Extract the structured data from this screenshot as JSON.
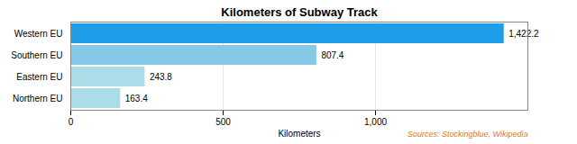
{
  "chart_data": {
    "type": "bar",
    "orientation": "horizontal",
    "title": "Kilometers of Subway Track",
    "xlabel": "Kilometers",
    "categories": [
      "Northern EU",
      "Eastern EU",
      "Southern EU",
      "Western EU"
    ],
    "values": [
      163.4,
      243.8,
      807.4,
      1422.2
    ],
    "value_labels": [
      "163.4",
      "243.8",
      "807.4",
      "1,422.2"
    ],
    "data_labels": true,
    "colors": [
      "#aadde8",
      "#aadde8",
      "#85c8e8",
      "#1e9de8"
    ],
    "xlim": [
      0,
      1500
    ],
    "xticks": [
      0,
      500,
      {
        "value": 1000,
        "label": "1,000"
      }
    ],
    "grid": true,
    "annotations": [
      "Sources: Stockingblue, Wikipedia"
    ]
  }
}
